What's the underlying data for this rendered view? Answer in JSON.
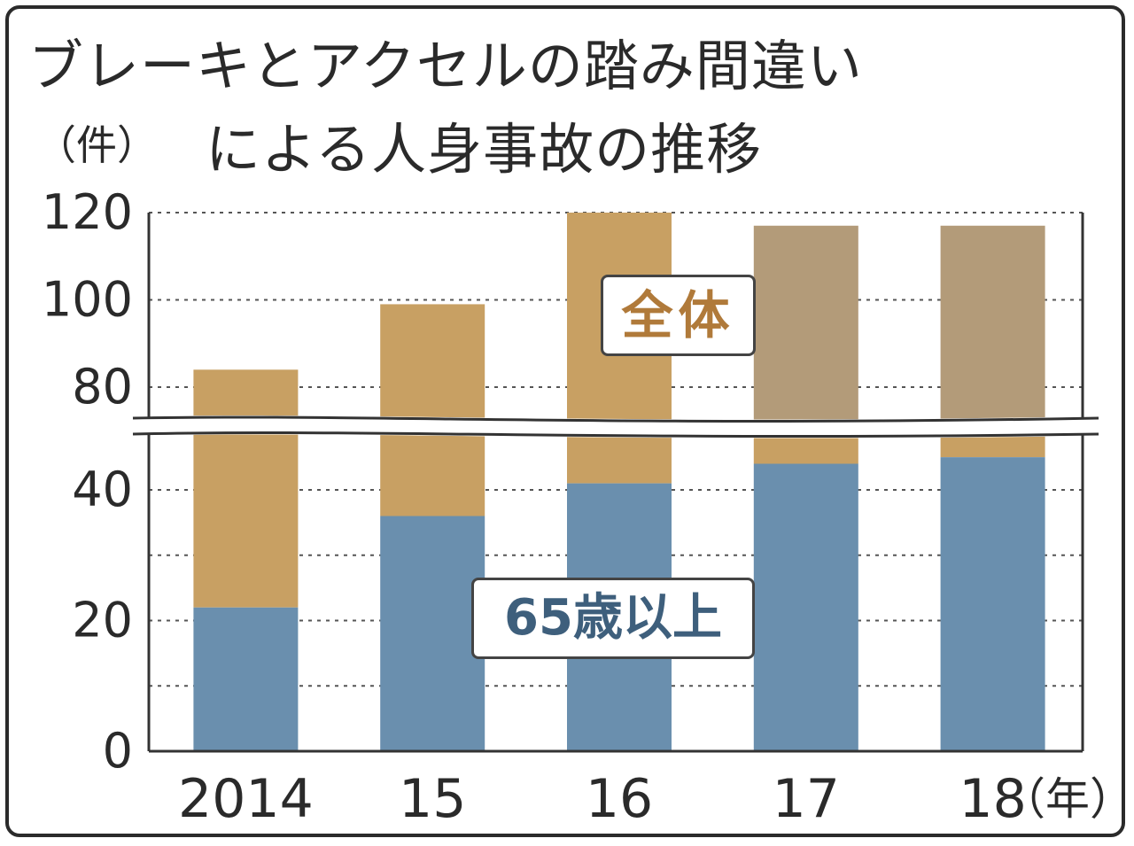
{
  "title_line1": "ブレーキとアクセルの踏み間違い",
  "title_line2": "による人身事故の推移",
  "y_unit": "（件）",
  "x_unit": "（年）",
  "colors": {
    "total": "#c8a063",
    "total_overlay": "#b39b79",
    "senior": "#6a8fae",
    "grid": "#555555",
    "text": "#2a2a2a"
  },
  "chart_data": {
    "type": "bar",
    "stacked": true,
    "broken_axis": true,
    "categories": [
      "2014",
      "15",
      "16",
      "17",
      "18"
    ],
    "series": [
      {
        "name": "65歳以上",
        "values": [
          22,
          36,
          41,
          44,
          45
        ]
      },
      {
        "name": "全体",
        "values": [
          84,
          99,
          120,
          117,
          117
        ]
      }
    ],
    "yticks_lower": [
      "0",
      "20",
      "40"
    ],
    "yticks_upper": [
      "80",
      "100",
      "120"
    ],
    "ylim_lower": [
      0,
      48
    ],
    "ylim_upper": [
      73,
      120
    ],
    "grid": true,
    "legend_placement": "inline labels on plot"
  }
}
